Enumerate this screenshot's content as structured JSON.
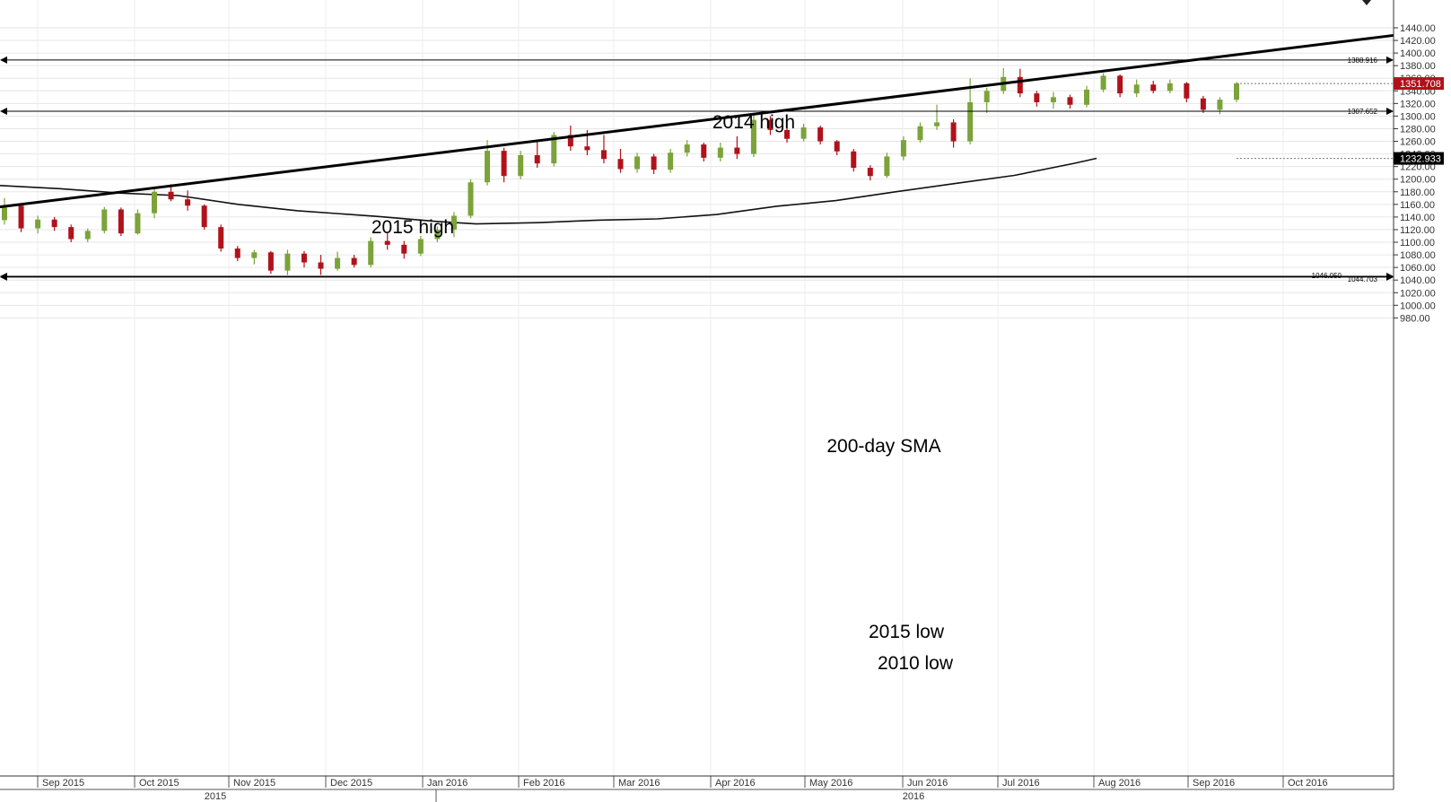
{
  "chart_data": {
    "type": "candlestick",
    "y_range": [
      960,
      1450
    ],
    "y_ticks": [
      "980.00",
      "1000.00",
      "1020.00",
      "1040.00",
      "1060.00",
      "1080.00",
      "1100.00",
      "1120.00",
      "1140.00",
      "1160.00",
      "1180.00",
      "1200.00",
      "1220.00",
      "1240.00",
      "1260.00",
      "1280.00",
      "1300.00",
      "1320.00",
      "1340.00",
      "1360.00",
      "1380.00",
      "1400.00",
      "1420.00",
      "1440.00"
    ],
    "month_labels": [
      "Sep 2015",
      "Oct 2015",
      "Nov 2015",
      "Dec 2015",
      "Jan 2016",
      "Feb 2016",
      "Mar 2016",
      "Apr 2016",
      "May 2016",
      "Jun 2016",
      "Jul 2016",
      "Aug 2016",
      "Sep 2016",
      "Oct 2016"
    ],
    "year_labels": [
      "2015",
      "2016"
    ],
    "colors": {
      "up": "#7ba33a",
      "down": "#b0121b",
      "price_tag_bg": "#b0121b",
      "sma_tag_bg": "#000000",
      "line": "#000000"
    },
    "current_price": {
      "label": "1351.708",
      "value": 1351.708
    },
    "sma_value": {
      "label": "1232.933",
      "value": 1232.933
    },
    "levels": [
      {
        "name": "2014 high",
        "label": "1388.916",
        "value": 1388.916
      },
      {
        "name": "2015 high",
        "label": "1307.652",
        "value": 1307.652
      },
      {
        "name": "2015 low",
        "label": "1046.050",
        "value": 1046.05
      },
      {
        "name": "2010 low",
        "label": "1044.703",
        "value": 1044.703
      }
    ],
    "trendline": {
      "points": [
        {
          "date": "2015-08-24",
          "value": 1156
        },
        {
          "date": "2016-10-24",
          "value": 1428
        }
      ]
    },
    "annotations": {
      "high_2014": "2014 high",
      "high_2015": "2015 high",
      "low_2015": "2015 low",
      "low_2010": "2010 low",
      "sma": "200-day SMA"
    },
    "sma_path": [
      {
        "date": "2015-08-24",
        "value": 1190
      },
      {
        "date": "2015-09-14",
        "value": 1185
      },
      {
        "date": "2015-10-05",
        "value": 1178
      },
      {
        "date": "2015-10-26",
        "value": 1174
      },
      {
        "date": "2015-11-16",
        "value": 1160
      },
      {
        "date": "2015-12-07",
        "value": 1150
      },
      {
        "date": "2016-01-04",
        "value": 1141
      },
      {
        "date": "2016-01-25",
        "value": 1133
      },
      {
        "date": "2016-02-08",
        "value": 1129
      },
      {
        "date": "2016-03-01",
        "value": 1131
      },
      {
        "date": "2016-03-22",
        "value": 1135
      },
      {
        "date": "2016-04-12",
        "value": 1137
      },
      {
        "date": "2016-05-03",
        "value": 1144
      },
      {
        "date": "2016-05-24",
        "value": 1157
      },
      {
        "date": "2016-06-14",
        "value": 1166
      },
      {
        "date": "2016-07-05",
        "value": 1180
      },
      {
        "date": "2016-07-26",
        "value": 1193
      },
      {
        "date": "2016-08-16",
        "value": 1206
      },
      {
        "date": "2016-09-06",
        "value": 1225
      },
      {
        "date": "2016-09-14",
        "value": 1233
      }
    ],
    "candles": [
      {
        "date": "2015-08-24",
        "open": 1135,
        "high": 1170,
        "low": 1128,
        "close": 1158
      },
      {
        "date": "2015-08-31",
        "open": 1158,
        "high": 1160,
        "low": 1116,
        "close": 1122
      },
      {
        "date": "2015-09-07",
        "open": 1122,
        "high": 1142,
        "low": 1114,
        "close": 1136
      },
      {
        "date": "2015-09-14",
        "open": 1136,
        "high": 1140,
        "low": 1118,
        "close": 1124
      },
      {
        "date": "2015-09-21",
        "open": 1124,
        "high": 1128,
        "low": 1100,
        "close": 1105
      },
      {
        "date": "2015-09-28",
        "open": 1105,
        "high": 1122,
        "low": 1100,
        "close": 1118
      },
      {
        "date": "2015-10-05",
        "open": 1118,
        "high": 1156,
        "low": 1114,
        "close": 1152
      },
      {
        "date": "2015-10-12",
        "open": 1152,
        "high": 1155,
        "low": 1110,
        "close": 1114
      },
      {
        "date": "2015-10-19",
        "open": 1114,
        "high": 1152,
        "low": 1112,
        "close": 1146
      },
      {
        "date": "2015-10-26",
        "open": 1146,
        "high": 1185,
        "low": 1138,
        "close": 1180
      },
      {
        "date": "2015-11-02",
        "open": 1180,
        "high": 1192,
        "low": 1165,
        "close": 1168
      },
      {
        "date": "2015-11-09",
        "open": 1168,
        "high": 1182,
        "low": 1150,
        "close": 1158
      },
      {
        "date": "2015-11-16",
        "open": 1158,
        "high": 1160,
        "low": 1120,
        "close": 1124
      },
      {
        "date": "2015-11-23",
        "open": 1124,
        "high": 1128,
        "low": 1085,
        "close": 1090
      },
      {
        "date": "2015-11-30",
        "open": 1090,
        "high": 1094,
        "low": 1070,
        "close": 1075
      },
      {
        "date": "2015-12-07",
        "open": 1075,
        "high": 1088,
        "low": 1065,
        "close": 1084
      },
      {
        "date": "2015-12-14",
        "open": 1084,
        "high": 1086,
        "low": 1050,
        "close": 1055
      },
      {
        "date": "2015-12-21",
        "open": 1055,
        "high": 1088,
        "low": 1048,
        "close": 1082
      },
      {
        "date": "2015-12-28",
        "open": 1082,
        "high": 1086,
        "low": 1060,
        "close": 1068
      },
      {
        "date": "2016-01-04",
        "open": 1068,
        "high": 1080,
        "low": 1048,
        "close": 1058
      },
      {
        "date": "2016-01-11",
        "open": 1058,
        "high": 1085,
        "low": 1055,
        "close": 1075
      },
      {
        "date": "2016-01-18",
        "open": 1075,
        "high": 1080,
        "low": 1060,
        "close": 1064
      },
      {
        "date": "2016-01-25",
        "open": 1064,
        "high": 1108,
        "low": 1060,
        "close": 1102
      },
      {
        "date": "2016-02-01",
        "open": 1102,
        "high": 1114,
        "low": 1088,
        "close": 1096
      },
      {
        "date": "2016-02-08",
        "open": 1096,
        "high": 1102,
        "low": 1074,
        "close": 1082
      },
      {
        "date": "2016-02-15",
        "open": 1082,
        "high": 1110,
        "low": 1078,
        "close": 1105
      },
      {
        "date": "2016-02-22",
        "open": 1105,
        "high": 1125,
        "low": 1100,
        "close": 1120
      },
      {
        "date": "2016-02-29",
        "open": 1120,
        "high": 1148,
        "low": 1108,
        "close": 1142
      },
      {
        "date": "2016-03-07",
        "open": 1142,
        "high": 1200,
        "low": 1138,
        "close": 1195
      },
      {
        "date": "2016-03-14",
        "open": 1195,
        "high": 1262,
        "low": 1190,
        "close": 1245
      },
      {
        "date": "2016-03-21",
        "open": 1245,
        "high": 1250,
        "low": 1195,
        "close": 1205
      },
      {
        "date": "2016-03-28",
        "open": 1205,
        "high": 1245,
        "low": 1200,
        "close": 1238
      },
      {
        "date": "2016-04-04",
        "open": 1238,
        "high": 1260,
        "low": 1218,
        "close": 1225
      },
      {
        "date": "2016-04-11",
        "open": 1225,
        "high": 1275,
        "low": 1220,
        "close": 1270
      },
      {
        "date": "2016-04-18",
        "open": 1270,
        "high": 1285,
        "low": 1245,
        "close": 1252
      },
      {
        "date": "2016-04-25",
        "open": 1252,
        "high": 1278,
        "low": 1238,
        "close": 1246
      },
      {
        "date": "2016-05-02",
        "open": 1246,
        "high": 1270,
        "low": 1225,
        "close": 1232
      },
      {
        "date": "2016-05-09",
        "open": 1232,
        "high": 1248,
        "low": 1210,
        "close": 1216
      },
      {
        "date": "2016-05-16",
        "open": 1216,
        "high": 1242,
        "low": 1210,
        "close": 1236
      },
      {
        "date": "2016-05-23",
        "open": 1236,
        "high": 1240,
        "low": 1208,
        "close": 1215
      },
      {
        "date": "2016-05-30",
        "open": 1215,
        "high": 1248,
        "low": 1210,
        "close": 1242
      },
      {
        "date": "2016-06-06",
        "open": 1242,
        "high": 1262,
        "low": 1236,
        "close": 1255
      },
      {
        "date": "2016-06-13",
        "open": 1255,
        "high": 1258,
        "low": 1228,
        "close": 1234
      },
      {
        "date": "2016-06-20",
        "open": 1234,
        "high": 1258,
        "low": 1228,
        "close": 1250
      },
      {
        "date": "2016-06-27",
        "open": 1250,
        "high": 1268,
        "low": 1232,
        "close": 1240
      },
      {
        "date": "2016-07-04",
        "open": 1240,
        "high": 1302,
        "low": 1235,
        "close": 1294
      },
      {
        "date": "2016-07-11",
        "open": 1294,
        "high": 1300,
        "low": 1270,
        "close": 1278
      },
      {
        "date": "2016-07-18",
        "open": 1278,
        "high": 1296,
        "low": 1258,
        "close": 1264
      },
      {
        "date": "2016-07-25",
        "open": 1264,
        "high": 1288,
        "low": 1260,
        "close": 1282
      },
      {
        "date": "2016-08-01",
        "open": 1282,
        "high": 1285,
        "low": 1255,
        "close": 1260
      },
      {
        "date": "2016-08-08",
        "open": 1260,
        "high": 1262,
        "low": 1238,
        "close": 1244
      },
      {
        "date": "2016-08-15",
        "open": 1244,
        "high": 1248,
        "low": 1212,
        "close": 1218
      },
      {
        "date": "2016-08-22",
        "open": 1218,
        "high": 1222,
        "low": 1198,
        "close": 1205
      },
      {
        "date": "2016-08-29",
        "open": 1205,
        "high": 1242,
        "low": 1202,
        "close": 1236
      },
      {
        "date": "2016-09-05",
        "open": 1236,
        "high": 1268,
        "low": 1230,
        "close": 1262
      },
      {
        "date": "2016-09-12",
        "open": 1262,
        "high": 1290,
        "low": 1258,
        "close": 1284
      },
      {
        "date": "2016-09-19",
        "open": 1284,
        "high": 1318,
        "low": 1278,
        "close": 1290
      },
      {
        "date": "2016-09-26",
        "open": 1290,
        "high": 1295,
        "low": 1250,
        "close": 1260
      },
      {
        "date": "2016-10-03",
        "open": 1260,
        "high": 1360,
        "low": 1255,
        "close": 1322
      },
      {
        "date": "2016-10-10",
        "open": 1322,
        "high": 1345,
        "low": 1305,
        "close": 1340
      },
      {
        "date": "2016-10-17",
        "open": 1340,
        "high": 1376,
        "low": 1335,
        "close": 1362
      },
      {
        "date": "2016-10-24",
        "open": 1362,
        "high": 1375,
        "low": 1330,
        "close": 1336
      },
      {
        "date": "2016-10-31",
        "open": 1336,
        "high": 1340,
        "low": 1315,
        "close": 1322
      },
      {
        "date": "2016-11-07",
        "open": 1322,
        "high": 1338,
        "low": 1312,
        "close": 1330
      },
      {
        "date": "2016-11-14",
        "open": 1330,
        "high": 1334,
        "low": 1312,
        "close": 1318
      },
      {
        "date": "2016-11-21",
        "open": 1318,
        "high": 1348,
        "low": 1314,
        "close": 1342
      },
      {
        "date": "2016-11-28",
        "open": 1342,
        "high": 1368,
        "low": 1338,
        "close": 1364
      },
      {
        "date": "2016-12-05",
        "open": 1364,
        "high": 1366,
        "low": 1330,
        "close": 1336
      },
      {
        "date": "2016-12-12",
        "open": 1336,
        "high": 1358,
        "low": 1330,
        "close": 1350
      },
      {
        "date": "2016-12-19",
        "open": 1350,
        "high": 1356,
        "low": 1336,
        "close": 1340
      },
      {
        "date": "2016-12-26",
        "open": 1340,
        "high": 1358,
        "low": 1336,
        "close": 1352
      },
      {
        "date": "2017-01-02",
        "open": 1352,
        "high": 1354,
        "low": 1322,
        "close": 1328
      },
      {
        "date": "2017-01-09",
        "open": 1328,
        "high": 1332,
        "low": 1305,
        "close": 1310
      },
      {
        "date": "2017-01-16",
        "open": 1310,
        "high": 1330,
        "low": 1303,
        "close": 1326
      },
      {
        "date": "2017-01-23",
        "open": 1326,
        "high": 1354,
        "low": 1322,
        "close": 1351.708
      }
    ]
  }
}
